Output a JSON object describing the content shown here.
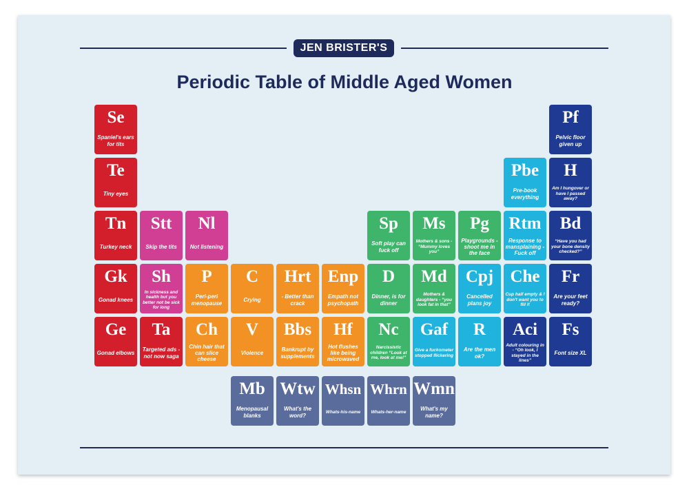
{
  "header": {
    "brand": "JEN BRISTER'S",
    "title": "Periodic Table of Middle Aged Women"
  },
  "colors": {
    "red": "#d21f2b",
    "magenta": "#d13f95",
    "orange": "#f39224",
    "green": "#3fb56c",
    "cyan": "#1fb3dd",
    "navy": "#1f3a93",
    "slate": "#5a6c9b"
  },
  "tiles": [
    {
      "sym": "Se",
      "desc": "Spaniel's ears for tits",
      "color": "red",
      "col": 0,
      "row": 0,
      "name": "tile-se"
    },
    {
      "sym": "Te",
      "desc": "Tiny eyes",
      "color": "red",
      "col": 0,
      "row": 1,
      "name": "tile-te"
    },
    {
      "sym": "Tn",
      "desc": "Turkey neck",
      "color": "red",
      "col": 0,
      "row": 2,
      "name": "tile-tn"
    },
    {
      "sym": "Gk",
      "desc": "Gonad knees",
      "color": "red",
      "col": 0,
      "row": 3,
      "name": "tile-gk"
    },
    {
      "sym": "Ge",
      "desc": "Gonad elbows",
      "color": "red",
      "col": 0,
      "row": 4,
      "name": "tile-ge"
    },
    {
      "sym": "Stt",
      "desc": "Skip the tits",
      "color": "magenta",
      "col": 1,
      "row": 2,
      "name": "tile-stt"
    },
    {
      "sym": "Sh",
      "desc": "In sickness and health but you better not be sick for long",
      "color": "magenta",
      "col": 1,
      "row": 3,
      "small": true,
      "name": "tile-sh"
    },
    {
      "sym": "Ta",
      "desc": "Targeted ads - not now saga",
      "color": "red",
      "col": 1,
      "row": 4,
      "name": "tile-ta"
    },
    {
      "sym": "Nl",
      "desc": "Not listening",
      "color": "magenta",
      "col": 2,
      "row": 2,
      "name": "tile-nl"
    },
    {
      "sym": "P",
      "desc": "Peri-peri menopause",
      "color": "orange",
      "col": 2,
      "row": 3,
      "name": "tile-p"
    },
    {
      "sym": "Ch",
      "desc": "Chin hair that can slice cheese",
      "color": "orange",
      "col": 2,
      "row": 4,
      "name": "tile-ch"
    },
    {
      "sym": "C",
      "desc": "Crying",
      "color": "orange",
      "col": 3,
      "row": 3,
      "name": "tile-c"
    },
    {
      "sym": "V",
      "desc": "Violence",
      "color": "orange",
      "col": 3,
      "row": 4,
      "name": "tile-v"
    },
    {
      "sym": "Hrt",
      "desc": "- Better than crack",
      "color": "orange",
      "col": 4,
      "row": 3,
      "name": "tile-hrt"
    },
    {
      "sym": "Bbs",
      "desc": "Bankrupt by supplements",
      "color": "orange",
      "col": 4,
      "row": 4,
      "name": "tile-bbs"
    },
    {
      "sym": "Enp",
      "desc": "Empath not psychopath",
      "color": "orange",
      "col": 5,
      "row": 3,
      "name": "tile-enp"
    },
    {
      "sym": "Hf",
      "desc": "Hot flushes like being microwaved",
      "color": "orange",
      "col": 5,
      "row": 4,
      "name": "tile-hf"
    },
    {
      "sym": "Sp",
      "desc": "Soft play can fuck off",
      "color": "green",
      "col": 6,
      "row": 2,
      "name": "tile-sp"
    },
    {
      "sym": "D",
      "desc": "Dinner, is for dinner",
      "color": "green",
      "col": 6,
      "row": 3,
      "name": "tile-d"
    },
    {
      "sym": "Nc",
      "desc": "Narcissistic children “Look at me, look at me!”",
      "color": "green",
      "col": 6,
      "row": 4,
      "small": true,
      "name": "tile-nc"
    },
    {
      "sym": "Ms",
      "desc": "Mothers & sons - “Mummy loves you”",
      "color": "green",
      "col": 7,
      "row": 2,
      "small": true,
      "name": "tile-ms"
    },
    {
      "sym": "Md",
      "desc": "Mothers & daughters - “you look fat in that”",
      "color": "green",
      "col": 7,
      "row": 3,
      "small": true,
      "name": "tile-md"
    },
    {
      "sym": "Gaf",
      "desc": "Give a fuckometer stopped flickering",
      "color": "cyan",
      "col": 7,
      "row": 4,
      "small": true,
      "name": "tile-gaf"
    },
    {
      "sym": "Pg",
      "desc": "Playgrounds - shoot me in the face",
      "color": "green",
      "col": 8,
      "row": 2,
      "name": "tile-pg"
    },
    {
      "sym": "Cpj",
      "desc": "Cancelled plans joy",
      "color": "cyan",
      "col": 8,
      "row": 3,
      "name": "tile-cpj"
    },
    {
      "sym": "R",
      "desc": "Are the men ok?",
      "color": "cyan",
      "col": 8,
      "row": 4,
      "name": "tile-r"
    },
    {
      "sym": "Pbe",
      "desc": "Pre-book everything",
      "color": "cyan",
      "col": 9,
      "row": 1,
      "name": "tile-pbe"
    },
    {
      "sym": "Rtm",
      "desc": "Response to mansplaining - Fuck off",
      "color": "cyan",
      "col": 9,
      "row": 2,
      "name": "tile-rtm"
    },
    {
      "sym": "Che",
      "desc": "Cup half empty & I don't want you to fill it",
      "color": "cyan",
      "col": 9,
      "row": 3,
      "small": true,
      "name": "tile-che"
    },
    {
      "sym": "Aci",
      "desc": "Adult colouring in - “Oh look, I stayed in the lines”",
      "color": "navy",
      "col": 9,
      "row": 4,
      "small": true,
      "name": "tile-aci"
    },
    {
      "sym": "Pf",
      "desc": "Pelvic floor given up",
      "color": "navy",
      "col": 10,
      "row": 0,
      "name": "tile-pf"
    },
    {
      "sym": "H",
      "desc": "Am I hungover or have I passed away?",
      "color": "navy",
      "col": 10,
      "row": 1,
      "small": true,
      "name": "tile-h"
    },
    {
      "sym": "Bd",
      "desc": "“Have you had your bone density checked?”",
      "color": "navy",
      "col": 10,
      "row": 2,
      "small": true,
      "name": "tile-bd"
    },
    {
      "sym": "Fr",
      "desc": "Are your feet ready?",
      "color": "navy",
      "col": 10,
      "row": 3,
      "name": "tile-fr"
    },
    {
      "sym": "Fs",
      "desc": "Font size XL",
      "color": "navy",
      "col": 10,
      "row": 4,
      "name": "tile-fs"
    },
    {
      "sym": "Mb",
      "desc": "Menopausal blanks",
      "color": "slate",
      "col": 3,
      "row": 5,
      "name": "tile-mb"
    },
    {
      "sym": "Wtw",
      "desc": "What's the word?",
      "color": "slate",
      "col": 4,
      "row": 5,
      "name": "tile-wtw"
    },
    {
      "sym": "Whsn",
      "desc": "Whats-his-name",
      "color": "slate",
      "col": 5,
      "row": 5,
      "small": true,
      "name": "tile-whsn"
    },
    {
      "sym": "Whrn",
      "desc": "Whats-her-name",
      "color": "slate",
      "col": 6,
      "row": 5,
      "small": true,
      "name": "tile-whrn"
    },
    {
      "sym": "Wmn",
      "desc": "What's my name?",
      "color": "slate",
      "col": 7,
      "row": 5,
      "name": "tile-wmn"
    }
  ]
}
